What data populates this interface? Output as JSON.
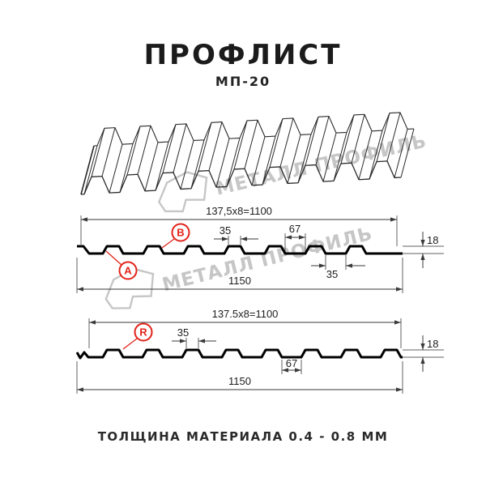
{
  "page": {
    "title": "ПРОФЛИСТ",
    "subtitle": "МП-20",
    "footer": "ТОЛЩИНА МАТЕРИАЛА 0.4 - 0.8 ММ"
  },
  "watermark": {
    "text": "МЕТАЛЛ ПРОФИЛЬ"
  },
  "colors": {
    "red": "#e2231a",
    "profile_line": "#000000",
    "dim_line": "#3a3a3a",
    "ext_line": "#606060",
    "text": "#1d1d1d",
    "watermark": "#c6c6c6",
    "sheet_line": "#2a2a2a"
  },
  "sections": [
    {
      "id": "profile-ab",
      "top_formula": "137,5x8=1100",
      "crest_width": "35",
      "valley_width": "67",
      "height": "18",
      "lower_valley_width": "35",
      "overall_width": "1150",
      "labels": [
        "А",
        "B"
      ]
    },
    {
      "id": "profile-r",
      "top_formula": "137.5x8=1100",
      "crest_width": "35",
      "valley_width": "67",
      "height": "18",
      "overall_width": "1150",
      "labels": [
        "R"
      ]
    }
  ]
}
